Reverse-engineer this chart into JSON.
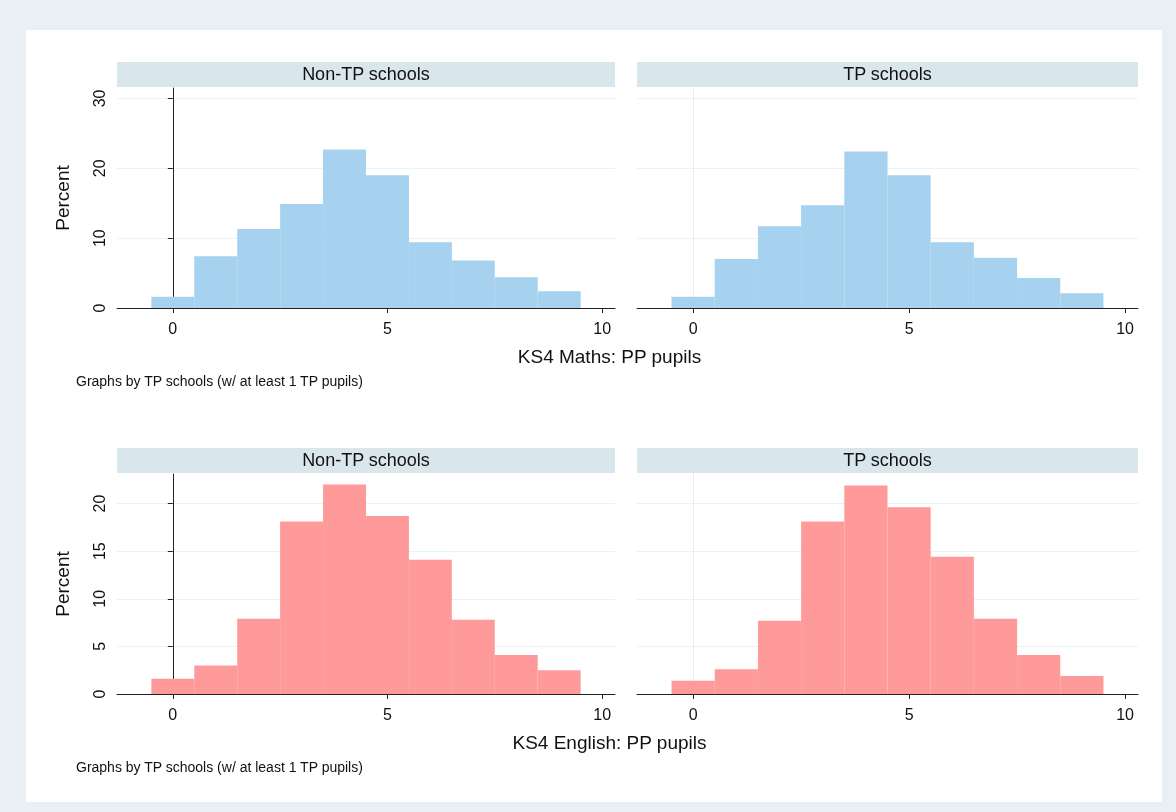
{
  "chart_data": [
    {
      "type": "histogram",
      "title": "Non-TP schools",
      "xlabel": "KS4 Maths: PP pupils",
      "ylabel": "Percent",
      "annotations": [
        "Graphs by TP schools (w/ at least 1 TP pupils)"
      ],
      "bins": [
        -0.5,
        0.5,
        1.5,
        2.5,
        3.5,
        4.5,
        5.5,
        6.5,
        7.5,
        8.5,
        9.5
      ],
      "values": [
        1.6,
        7.4,
        11.3,
        14.9,
        22.7,
        19.0,
        9.4,
        6.8,
        4.4,
        2.4
      ],
      "color": "#a6d1ef",
      "xlim": [
        -1.3,
        10.3
      ],
      "xticks": [
        0,
        5,
        10
      ],
      "ylim": [
        0,
        31.5
      ],
      "yticks": [
        0,
        10,
        20,
        30
      ],
      "grid": "y"
    },
    {
      "type": "histogram",
      "title": "TP schools",
      "bins": [
        -0.5,
        0.5,
        1.5,
        2.5,
        3.5,
        4.5,
        5.5,
        6.5,
        7.5,
        8.5,
        9.5
      ],
      "values": [
        1.6,
        7.0,
        11.7,
        14.7,
        22.4,
        19.0,
        9.4,
        7.2,
        4.3,
        2.1
      ],
      "color": "#a6d1ef",
      "xlim": [
        -1.3,
        10.3
      ],
      "xticks": [
        0,
        5,
        10
      ],
      "ylim": [
        0,
        31.5
      ],
      "yticks": [
        0,
        10,
        20,
        30
      ],
      "grid": "y",
      "tick_labels": "x"
    },
    {
      "type": "histogram",
      "title": "Non-TP schools",
      "xlabel": "KS4 English: PP pupils",
      "ylabel": "Percent",
      "annotations": [
        "Graphs by TP schools (w/ at least 1 TP pupils)"
      ],
      "bins": [
        -0.5,
        0.5,
        1.5,
        2.5,
        3.5,
        4.5,
        5.5,
        6.5,
        7.5,
        8.5,
        9.5
      ],
      "values": [
        1.6,
        3.0,
        7.9,
        18.1,
        22.0,
        18.7,
        14.1,
        7.8,
        4.1,
        2.5
      ],
      "color": "#fe9a9a",
      "xlim": [
        -1.3,
        10.3
      ],
      "xticks": [
        0,
        5,
        10
      ],
      "ylim": [
        0,
        23.1
      ],
      "yticks": [
        0,
        5,
        10,
        15,
        20
      ],
      "grid": "y"
    },
    {
      "type": "histogram",
      "title": "TP schools",
      "bins": [
        -0.5,
        0.5,
        1.5,
        2.5,
        3.5,
        4.5,
        5.5,
        6.5,
        7.5,
        8.5,
        9.5
      ],
      "values": [
        1.4,
        2.6,
        7.7,
        18.1,
        21.9,
        19.6,
        14.4,
        7.9,
        4.1,
        1.9
      ],
      "color": "#fe9a9a",
      "xlim": [
        -1.3,
        10.3
      ],
      "xticks": [
        0,
        5,
        10
      ],
      "ylim": [
        0,
        23.1
      ],
      "yticks": [
        0,
        5,
        10,
        15,
        20
      ],
      "grid": "y",
      "tick_labels": "x"
    }
  ]
}
